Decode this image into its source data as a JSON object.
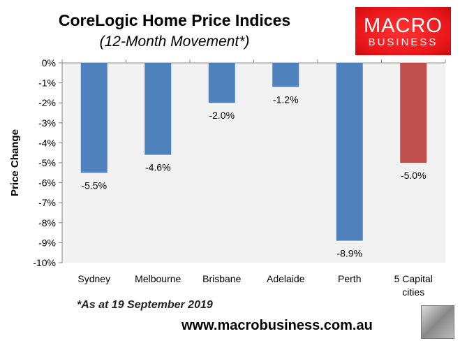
{
  "title": "CoreLogic Home Price Indices",
  "subtitle": "(12-Month Movement*)",
  "logo": {
    "line1": "MACRO",
    "line2": "BUSINESS"
  },
  "footnote": "*As at 19 September 2019",
  "website": "www.macrobusiness.com.au",
  "chart_data": {
    "type": "bar",
    "title": "CoreLogic Home Price Indices",
    "subtitle": "(12-Month Movement*)",
    "xlabel": "",
    "ylabel": "Price Change",
    "ylim": [
      -10,
      0
    ],
    "yticks": [
      "0%",
      "-1%",
      "-2%",
      "-3%",
      "-4%",
      "-5%",
      "-6%",
      "-7%",
      "-8%",
      "-9%",
      "-10%"
    ],
    "categories": [
      [
        "Sydney"
      ],
      [
        "Melbourne"
      ],
      [
        "Brisbane"
      ],
      [
        "Adelaide"
      ],
      [
        "Perth"
      ],
      [
        "5 Capital",
        "cities"
      ]
    ],
    "values": [
      -5.5,
      -4.6,
      -2.0,
      -1.2,
      -8.9,
      -5.0
    ],
    "labels": [
      "-5.5%",
      "-4.6%",
      "-2.0%",
      "-1.2%",
      "-8.9%",
      "-5.0%"
    ],
    "colors": [
      "#4f81bd",
      "#4f81bd",
      "#4f81bd",
      "#4f81bd",
      "#4f81bd",
      "#c0504d"
    ],
    "grid": false,
    "legend": "none"
  }
}
